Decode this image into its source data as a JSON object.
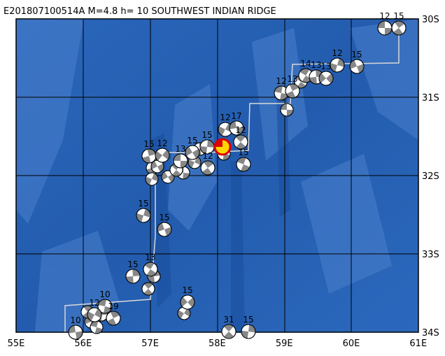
{
  "header": {
    "title": "E201807100514A M=4.8 h= 10 SOUTHWEST INDIAN RIDGE"
  },
  "axes": {
    "lon_labels": [
      "55E",
      "56E",
      "57E",
      "58E",
      "59E",
      "60E",
      "61E"
    ],
    "lat_labels": [
      "30S",
      "31S",
      "32S",
      "33S",
      "34S"
    ]
  },
  "events": [
    {
      "depth": "12"
    },
    {
      "depth": "15"
    },
    {
      "depth": "12"
    },
    {
      "depth": "15"
    },
    {
      "depth": "14"
    },
    {
      "depth": "13"
    },
    {
      "depth": "13"
    },
    {
      "depth": "12"
    },
    {
      "depth": "13"
    },
    {
      "depth": "12"
    },
    {
      "depth": "17"
    },
    {
      "depth": "12"
    },
    {
      "depth": "15"
    },
    {
      "depth": "15"
    },
    {
      "depth": "15"
    },
    {
      "depth": "15"
    },
    {
      "depth": "12"
    },
    {
      "depth": "13"
    },
    {
      "depth": "12"
    },
    {
      "depth": "15"
    },
    {
      "depth": "15"
    },
    {
      "depth": "13"
    },
    {
      "depth": "15"
    },
    {
      "depth": "15"
    },
    {
      "depth": "10"
    },
    {
      "depth": "19"
    },
    {
      "depth": "12"
    },
    {
      "depth": "10"
    },
    {
      "depth": "31"
    },
    {
      "depth": "15"
    }
  ]
}
